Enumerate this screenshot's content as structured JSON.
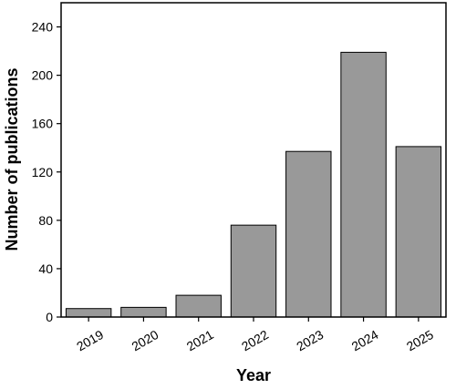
{
  "chart_data": {
    "type": "bar",
    "title": "",
    "xlabel": "Year",
    "ylabel": "Number of publications",
    "categories": [
      "2019",
      "2020",
      "2021",
      "2022",
      "2023",
      "2024",
      "2025"
    ],
    "values": [
      7,
      8,
      18,
      76,
      137,
      219,
      141
    ],
    "ylim": [
      0,
      260
    ],
    "yticks": [
      0,
      40,
      80,
      120,
      160,
      200,
      240
    ],
    "ytick_labels": [
      "0",
      "40",
      "80",
      "120",
      "160",
      "200",
      "240"
    ],
    "grid": false,
    "legend": "none",
    "colors": {
      "bar_fill": "#999999",
      "bar_stroke": "#000000",
      "axis": "#000000"
    }
  }
}
